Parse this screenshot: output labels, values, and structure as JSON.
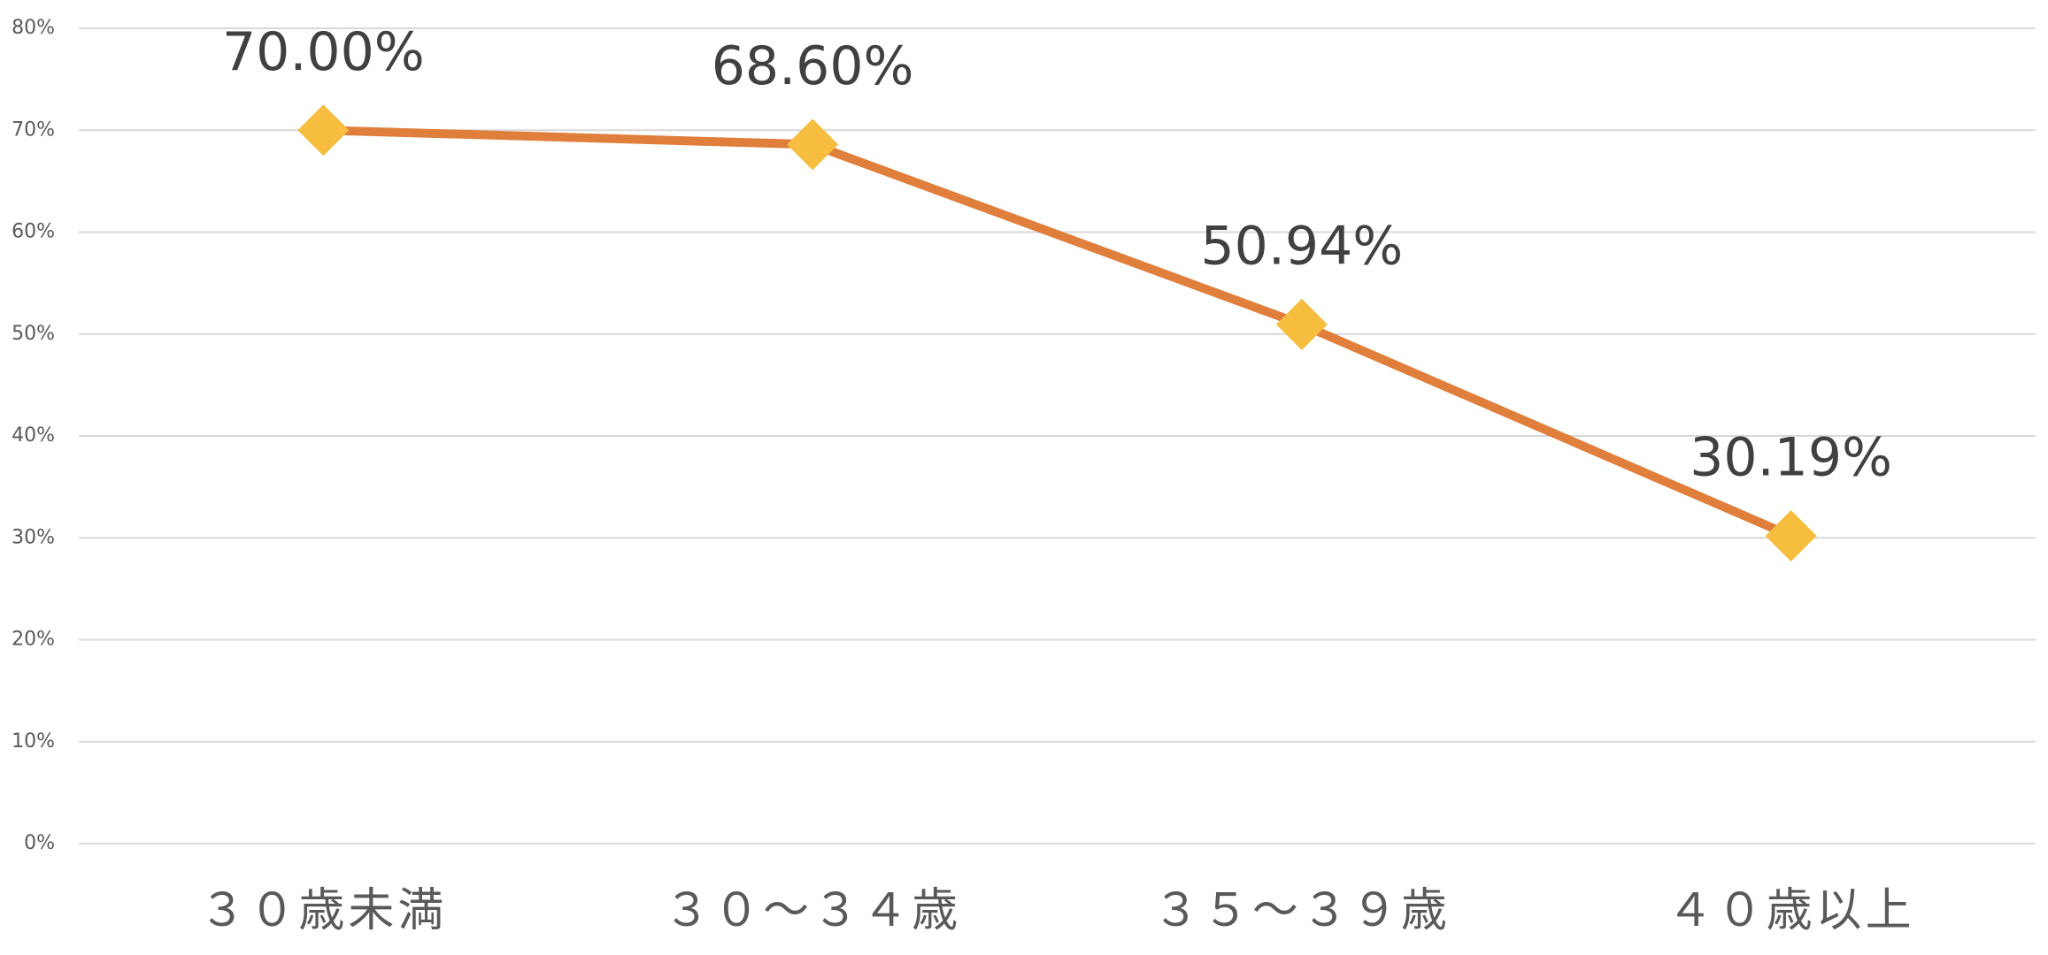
{
  "chart_data": {
    "type": "line",
    "categories": [
      "３０歳未満",
      "３０～３４歳",
      "３５～３９歳",
      "４０歳以上"
    ],
    "series": [
      {
        "color": "#e07f3c",
        "marker_color": "#f6bd3f",
        "values": [
          70.0,
          68.6,
          50.94,
          30.19
        ],
        "value_labels": [
          "70.00%",
          "68.60%",
          "50.94%",
          "30.19%"
        ]
      }
    ],
    "ylim": [
      0,
      80
    ],
    "yticks": [
      {
        "value": 0,
        "label": "0%"
      },
      {
        "value": 10,
        "label": "10%"
      },
      {
        "value": 20,
        "label": "20%"
      },
      {
        "value": 30,
        "label": "30%"
      },
      {
        "value": 40,
        "label": "40%"
      },
      {
        "value": 50,
        "label": "50%"
      },
      {
        "value": 60,
        "label": "60%"
      },
      {
        "value": 70,
        "label": "70%"
      },
      {
        "value": 80,
        "label": "80%"
      }
    ],
    "grid": true
  }
}
